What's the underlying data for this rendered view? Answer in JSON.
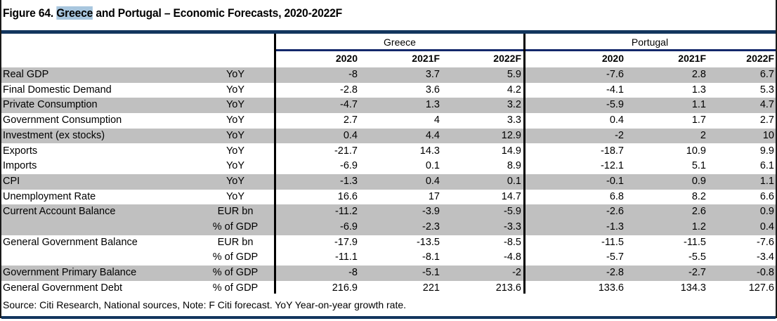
{
  "title": {
    "prefix": "Figure 64. ",
    "highlight": "Greece",
    "suffix": " and Portugal – Economic Forecasts, 2020-2022F"
  },
  "groups": [
    "Greece",
    "Portugal"
  ],
  "years": [
    "2020",
    "2021F",
    "2022F",
    "2020",
    "2021F",
    "2022F"
  ],
  "rows": [
    {
      "label": "Real GDP",
      "unit": "YoY",
      "values": [
        "-8",
        "3.7",
        "5.9",
        "-7.6",
        "2.8",
        "6.7"
      ],
      "shade": true
    },
    {
      "label": "Final Domestic Demand",
      "unit": "YoY",
      "values": [
        "-2.8",
        "3.6",
        "4.2",
        "-4.1",
        "1.3",
        "5.3"
      ],
      "shade": false
    },
    {
      "label": "Private Consumption",
      "unit": "YoY",
      "values": [
        "-4.7",
        "1.3",
        "3.2",
        "-5.9",
        "1.1",
        "4.7"
      ],
      "shade": true
    },
    {
      "label": "Government Consumption",
      "unit": "YoY",
      "values": [
        "2.7",
        "4",
        "3.3",
        "0.4",
        "1.7",
        "2.7"
      ],
      "shade": false
    },
    {
      "label": "Investment (ex stocks)",
      "unit": "YoY",
      "values": [
        "0.4",
        "4.4",
        "12.9",
        "-2",
        "2",
        "10"
      ],
      "shade": true
    },
    {
      "label": "Exports",
      "unit": "YoY",
      "values": [
        "-21.7",
        "14.3",
        "14.9",
        "-18.7",
        "10.9",
        "9.9"
      ],
      "shade": false
    },
    {
      "label": "Imports",
      "unit": "YoY",
      "values": [
        "-6.9",
        "0.1",
        "8.9",
        "-12.1",
        "5.1",
        "6.1"
      ],
      "shade": false
    },
    {
      "label": "CPI",
      "unit": "YoY",
      "values": [
        "-1.3",
        "0.4",
        "0.1",
        "-0.1",
        "0.9",
        "1.1"
      ],
      "shade": true
    },
    {
      "label": "Unemployment Rate",
      "unit": "YoY",
      "values": [
        "16.6",
        "17",
        "14.7",
        "6.8",
        "8.2",
        "6.6"
      ],
      "shade": false
    },
    {
      "label": "Current Account Balance",
      "unit": "EUR bn",
      "values": [
        "-11.2",
        "-3.9",
        "-5.9",
        "-2.6",
        "2.6",
        "0.9"
      ],
      "shade": true
    },
    {
      "label": "",
      "unit": "% of GDP",
      "values": [
        "-6.9",
        "-2.3",
        "-3.3",
        "-1.3",
        "1.2",
        "0.4"
      ],
      "shade": true
    },
    {
      "label": "General Government Balance",
      "unit": "EUR bn",
      "values": [
        "-17.9",
        "-13.5",
        "-8.5",
        "-11.5",
        "-11.5",
        "-7.6"
      ],
      "shade": false
    },
    {
      "label": "",
      "unit": "% of GDP",
      "values": [
        "-11.1",
        "-8.1",
        "-4.8",
        "-5.7",
        "-5.5",
        "-3.4"
      ],
      "shade": false
    },
    {
      "label": "Government Primary Balance",
      "unit": "% of GDP",
      "values": [
        "-8",
        "-5.1",
        "-2",
        "-2.8",
        "-2.7",
        "-0.8"
      ],
      "shade": true
    },
    {
      "label": "General Government Debt",
      "unit": "% of GDP",
      "values": [
        "216.9",
        "221",
        "213.6",
        "133.6",
        "134.3",
        "127.6"
      ],
      "shade": false
    }
  ],
  "note": "Source: Citi Research, National sources, Note: F Citi forecast. YoY Year-on-year growth rate.",
  "colors": {
    "bar": "#13365e",
    "shade": "#c0c0c0",
    "highlight": "#a8c6de"
  }
}
